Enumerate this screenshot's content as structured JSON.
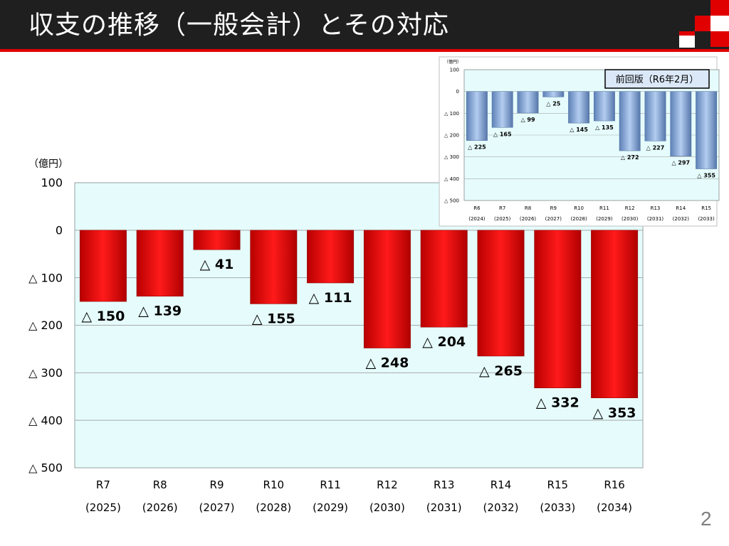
{
  "slide": {
    "title": "収支の推移（一般会計）とその対応",
    "page_number": "2",
    "colors": {
      "header_bg": "#1f1f1f",
      "accent_red": "#e00000",
      "plot_bg": "#e6fcfc"
    }
  },
  "chart_data": [
    {
      "id": "main",
      "type": "bar",
      "unit_label": "（億円）",
      "categories": [
        "R7",
        "R8",
        "R9",
        "R10",
        "R11",
        "R12",
        "R13",
        "R14",
        "R15",
        "R16"
      ],
      "category_years": [
        "(2025)",
        "(2026)",
        "(2027)",
        "(2028)",
        "(2029)",
        "(2030)",
        "(2031)",
        "(2032)",
        "(2033)",
        "(2034)"
      ],
      "values": [
        -150,
        -139,
        -41,
        -155,
        -111,
        -248,
        -204,
        -265,
        -332,
        -353
      ],
      "value_labels": [
        "△ 150",
        "△ 139",
        "△ 41",
        "△ 155",
        "△ 111",
        "△ 248",
        "△ 204",
        "△ 265",
        "△ 332",
        "△ 353"
      ],
      "y_ticks": [
        100,
        0,
        -100,
        -200,
        -300,
        -400,
        -500
      ],
      "y_tick_labels": [
        "100",
        "0",
        "△ 100",
        "△ 200",
        "△ 300",
        "△ 400",
        "△ 500"
      ],
      "ylim": [
        -500,
        100
      ],
      "grid": true,
      "bar_color": "#e60000"
    },
    {
      "id": "inset",
      "type": "bar",
      "title": "前回版（R6年2月）",
      "unit_label": "（億円）",
      "categories": [
        "R6",
        "R7",
        "R8",
        "R9",
        "R10",
        "R11",
        "R12",
        "R13",
        "R14",
        "R15"
      ],
      "category_years": [
        "(2024)",
        "(2025)",
        "(2026)",
        "(2027)",
        "(2028)",
        "(2029)",
        "(2030)",
        "(2031)",
        "(2032)",
        "(2033)"
      ],
      "values": [
        -225,
        -165,
        -99,
        -25,
        -145,
        -135,
        -272,
        -227,
        -297,
        -355
      ],
      "value_labels": [
        "△ 225",
        "△ 165",
        "△ 99",
        "△ 25",
        "△ 145",
        "△ 135",
        "△ 272",
        "△ 227",
        "△ 297",
        "△ 355"
      ],
      "y_ticks": [
        100,
        0,
        -100,
        -200,
        -300,
        -400,
        -500
      ],
      "y_tick_labels": [
        "100",
        "0",
        "△ 100",
        "△ 200",
        "△ 300",
        "△ 400",
        "△ 500"
      ],
      "ylim": [
        -500,
        100
      ],
      "grid": true,
      "bar_color": "#8fb0dc"
    }
  ]
}
